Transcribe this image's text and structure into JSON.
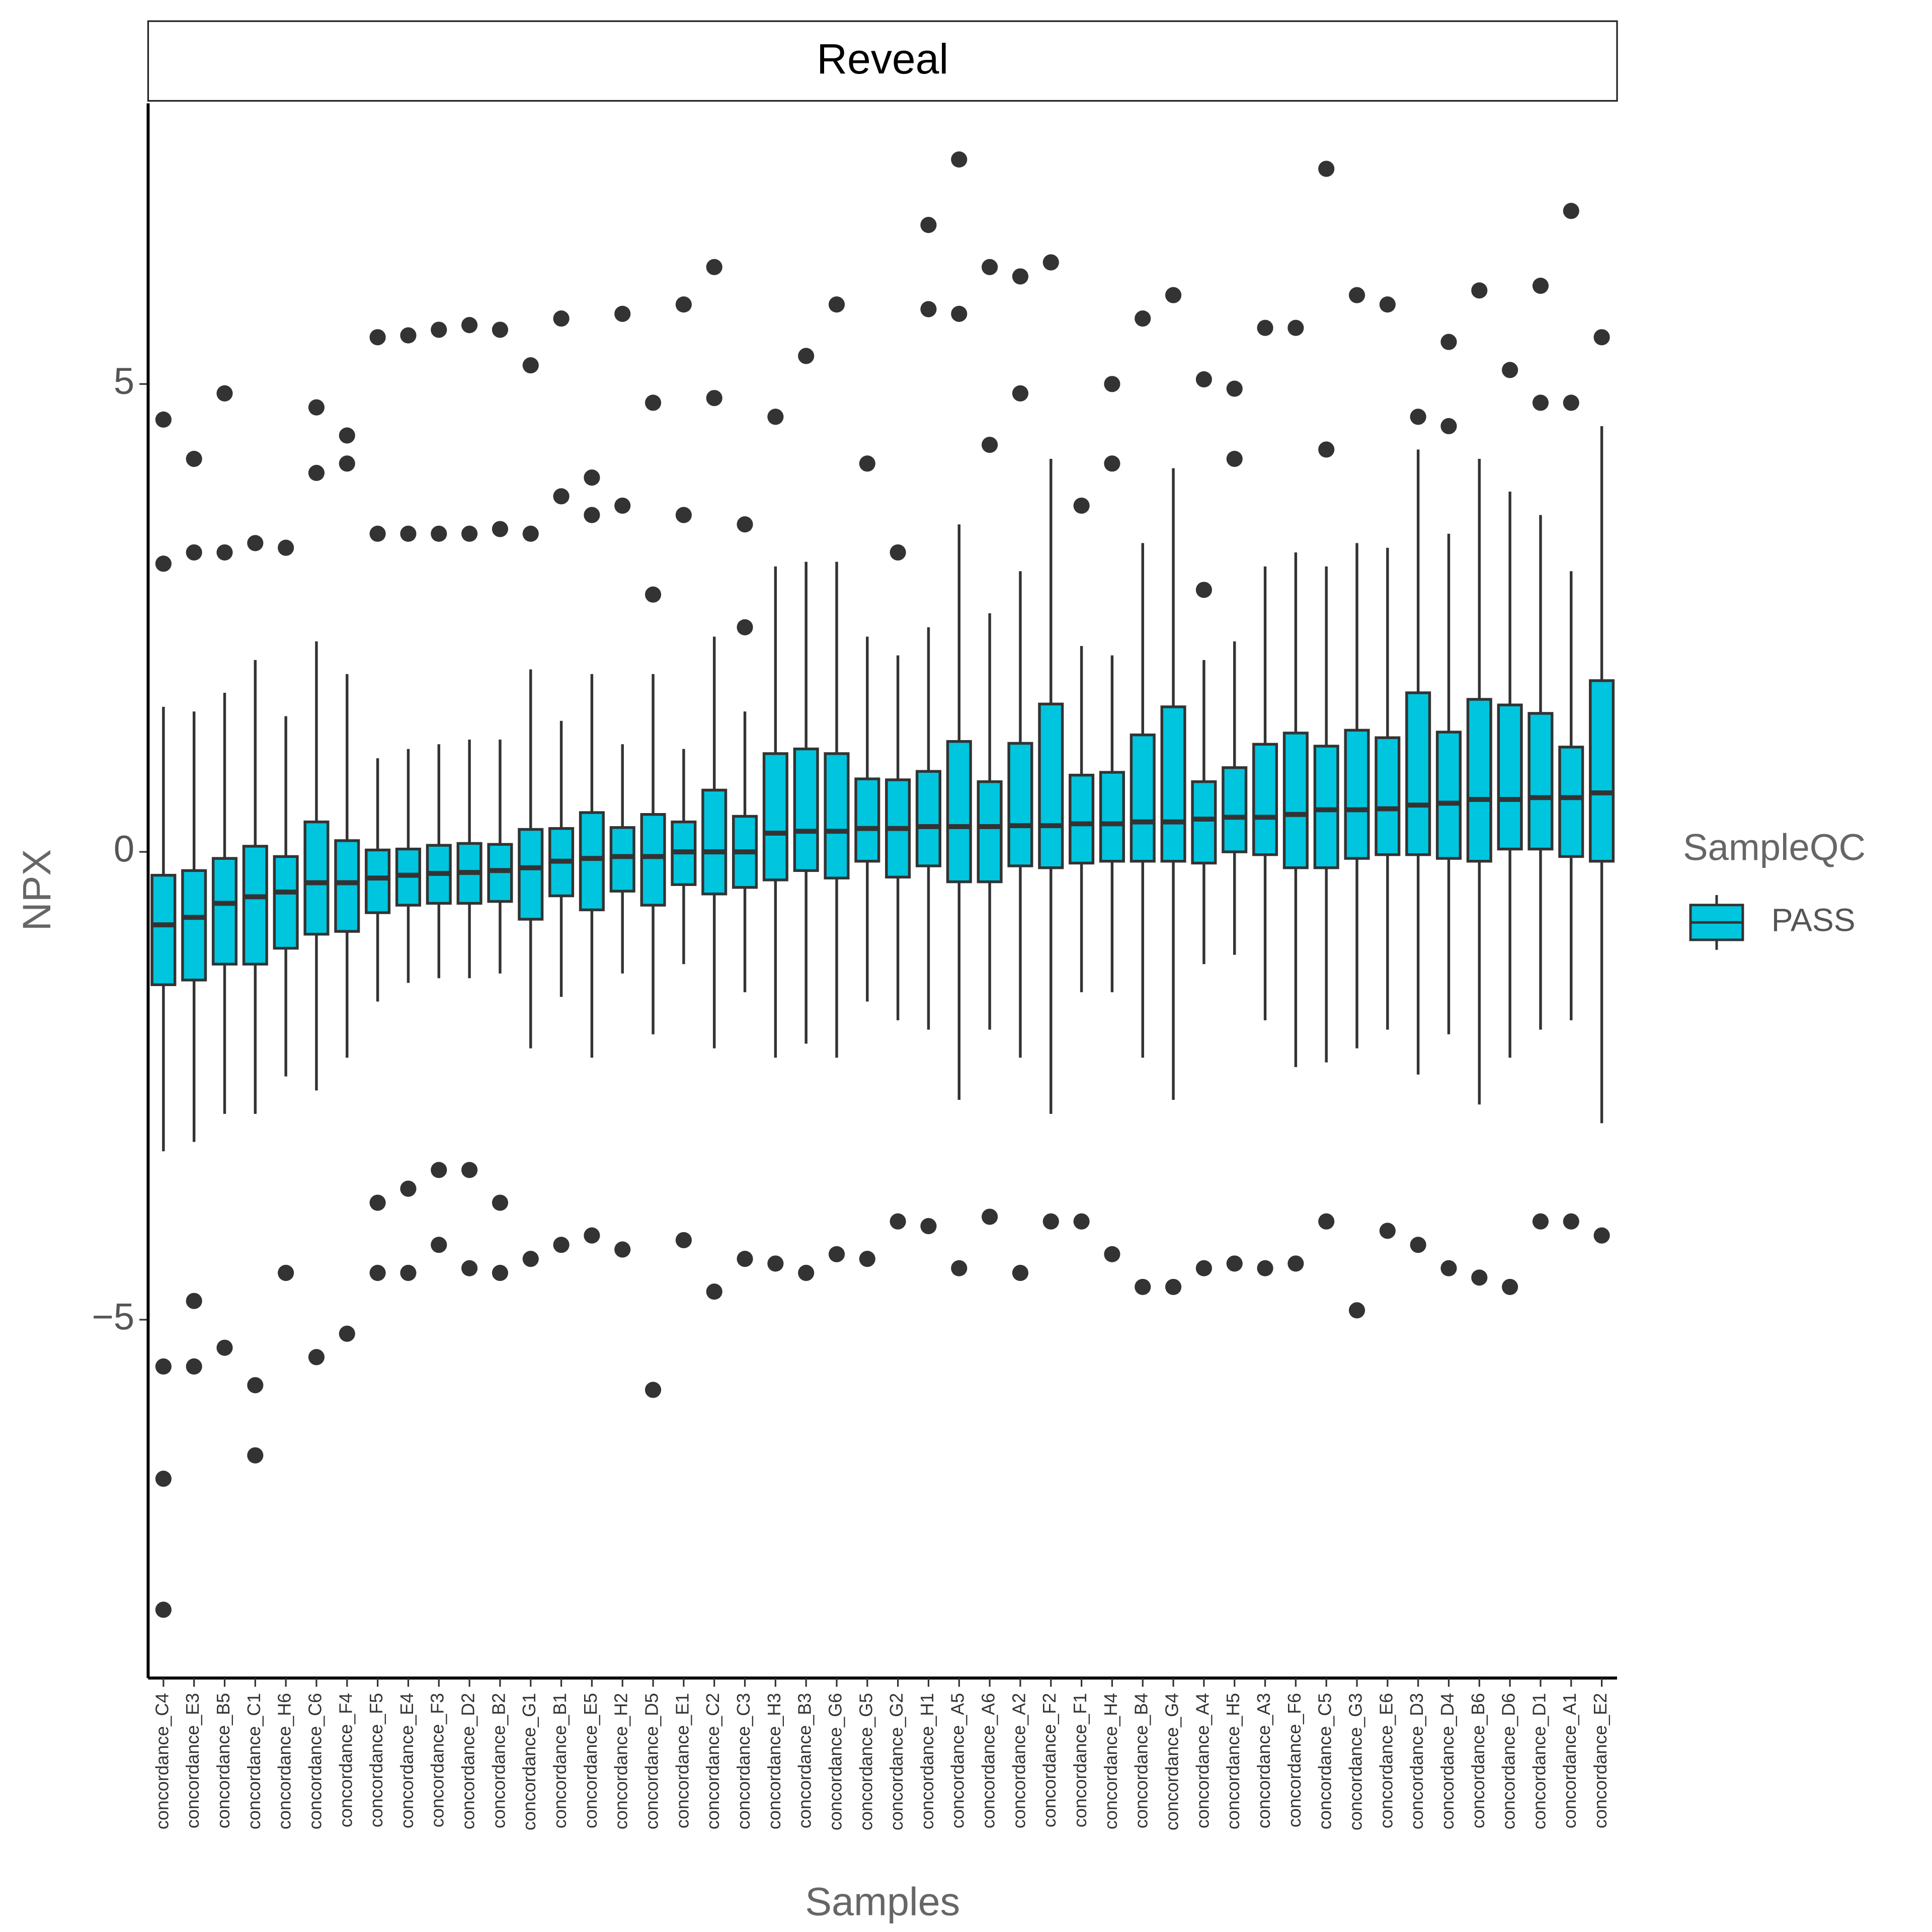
{
  "chart_data": {
    "type": "boxplot",
    "facet": "Reveal",
    "x_label": "Samples",
    "y_label": "NPX",
    "legend_title": "SampleQC",
    "legend_position": "right",
    "ylim": [
      -8.83,
      8.0
    ],
    "yticks": [
      {
        "value": -5,
        "label": "−5"
      },
      0,
      5
    ],
    "categories": [
      "concordance_C4",
      "concordance_E3",
      "concordance_B5",
      "concordance_C1",
      "concordance_H6",
      "concordance_C6",
      "concordance_F4",
      "concordance_F5",
      "concordance_E4",
      "concordance_F3",
      "concordance_D2",
      "concordance_B2",
      "concordance_G1",
      "concordance_B1",
      "concordance_E5",
      "concordance_H2",
      "concordance_D5",
      "concordance_E1",
      "concordance_C2",
      "concordance_C3",
      "concordance_H3",
      "concordance_B3",
      "concordance_G6",
      "concordance_G5",
      "concordance_G2",
      "concordance_H1",
      "concordance_A5",
      "concordance_A6",
      "concordance_A2",
      "concordance_F2",
      "concordance_F1",
      "concordance_H4",
      "concordance_B4",
      "concordance_G4",
      "concordance_A4",
      "concordance_H5",
      "concordance_A3",
      "concordance_F6",
      "concordance_C5",
      "concordance_G3",
      "concordance_E6",
      "concordance_D3",
      "concordance_D4",
      "concordance_B6",
      "concordance_D6",
      "concordance_D1",
      "concordance_A1",
      "concordance_E2"
    ],
    "series": [
      {
        "name": "PASS",
        "color": "#00c5de",
        "whislo": [
          -3.2,
          -3.1,
          -2.8,
          -2.8,
          -2.4,
          -2.55,
          -2.2,
          -1.6,
          -1.4,
          -1.35,
          -1.35,
          -1.3,
          -2.1,
          -1.55,
          -2.2,
          -1.3,
          -1.95,
          -1.2,
          -2.1,
          -1.5,
          -2.2,
          -2.05,
          -2.2,
          -1.6,
          -1.8,
          -1.9,
          -2.65,
          -1.9,
          -2.2,
          -2.8,
          -1.5,
          -1.5,
          -2.2,
          -2.65,
          -1.2,
          -1.1,
          -1.8,
          -2.3,
          -2.25,
          -2.1,
          -1.9,
          -2.38,
          -1.95,
          -2.7,
          -2.2,
          -1.9,
          -1.8,
          -2.9
        ],
        "q1": [
          -1.42,
          -1.37,
          -1.2,
          -1.2,
          -1.03,
          -0.88,
          -0.85,
          -0.65,
          -0.57,
          -0.55,
          -0.55,
          -0.53,
          -0.72,
          -0.47,
          -0.62,
          -0.42,
          -0.57,
          -0.35,
          -0.45,
          -0.38,
          -0.3,
          -0.2,
          -0.28,
          -0.1,
          -0.27,
          -0.15,
          -0.32,
          -0.32,
          -0.15,
          -0.17,
          -0.12,
          -0.1,
          -0.1,
          -0.1,
          -0.12,
          0.0,
          -0.03,
          -0.17,
          -0.17,
          -0.07,
          -0.03,
          -0.03,
          -0.07,
          -0.1,
          0.03,
          0.03,
          -0.05,
          -0.1
        ],
        "median": [
          -0.78,
          -0.7,
          -0.55,
          -0.48,
          -0.43,
          -0.33,
          -0.33,
          -0.28,
          -0.25,
          -0.23,
          -0.22,
          -0.2,
          -0.17,
          -0.1,
          -0.07,
          -0.05,
          -0.05,
          0.0,
          0.0,
          0.0,
          0.2,
          0.22,
          0.22,
          0.25,
          0.25,
          0.27,
          0.27,
          0.27,
          0.28,
          0.28,
          0.3,
          0.3,
          0.32,
          0.32,
          0.35,
          0.37,
          0.37,
          0.4,
          0.45,
          0.45,
          0.46,
          0.5,
          0.52,
          0.56,
          0.56,
          0.58,
          0.58,
          0.63
        ],
        "q3": [
          -0.25,
          -0.2,
          -0.07,
          0.06,
          -0.05,
          0.32,
          0.12,
          0.02,
          0.03,
          0.07,
          0.09,
          0.08,
          0.24,
          0.25,
          0.42,
          0.26,
          0.4,
          0.32,
          0.66,
          0.38,
          1.05,
          1.1,
          1.05,
          0.78,
          0.77,
          0.86,
          1.18,
          0.75,
          1.16,
          1.58,
          0.82,
          0.85,
          1.25,
          1.55,
          0.75,
          0.9,
          1.15,
          1.27,
          1.13,
          1.3,
          1.22,
          1.7,
          1.28,
          1.63,
          1.57,
          1.48,
          1.12,
          1.83
        ],
        "whishi": [
          1.55,
          1.5,
          1.7,
          2.05,
          1.45,
          2.25,
          1.9,
          1.0,
          1.1,
          1.15,
          1.2,
          1.2,
          1.95,
          1.4,
          1.9,
          1.15,
          1.9,
          1.1,
          2.3,
          1.5,
          3.05,
          3.1,
          3.1,
          2.3,
          2.1,
          2.4,
          3.5,
          2.55,
          3.0,
          4.2,
          2.2,
          2.1,
          3.3,
          4.1,
          2.05,
          2.25,
          3.05,
          3.2,
          3.05,
          3.3,
          3.25,
          4.3,
          3.4,
          4.2,
          3.85,
          3.6,
          3.0,
          4.55
        ],
        "outliers": [
          [
            4.62,
            3.08,
            -5.5,
            -6.7,
            -8.1
          ],
          [
            4.2,
            3.2,
            -4.8,
            -5.5
          ],
          [
            4.9,
            3.2,
            -5.3
          ],
          [
            3.3,
            -5.7,
            -6.45
          ],
          [
            3.25,
            -4.5
          ],
          [
            4.75,
            4.05,
            -5.4
          ],
          [
            4.45,
            4.15,
            -5.15
          ],
          [
            5.5,
            3.4,
            -3.75,
            -4.5
          ],
          [
            5.52,
            3.4,
            -3.6,
            -4.5
          ],
          [
            5.58,
            3.4,
            -3.4,
            -4.2
          ],
          [
            5.63,
            3.4,
            -3.4,
            -4.45
          ],
          [
            5.58,
            3.45,
            -3.75,
            -4.5
          ],
          [
            5.2,
            3.4,
            -4.35
          ],
          [
            5.7,
            3.8,
            -4.2
          ],
          [
            4.0,
            3.6,
            -4.1
          ],
          [
            5.75,
            3.7,
            -4.25
          ],
          [
            4.8,
            2.75,
            -5.75
          ],
          [
            5.85,
            3.6,
            -4.15
          ],
          [
            6.25,
            4.85,
            -4.7
          ],
          [
            3.5,
            2.4,
            -4.35
          ],
          [
            4.65,
            -4.4
          ],
          [
            5.3,
            -4.5
          ],
          [
            5.85,
            -4.3
          ],
          [
            4.15,
            -4.35
          ],
          [
            3.2,
            -3.95
          ],
          [
            6.7,
            5.8,
            -4.0
          ],
          [
            7.4,
            5.75,
            -4.45
          ],
          [
            6.25,
            4.35,
            -3.9
          ],
          [
            6.15,
            4.9,
            -4.5
          ],
          [
            6.3,
            -3.95
          ],
          [
            3.7,
            -3.95
          ],
          [
            5.0,
            4.15,
            -4.3
          ],
          [
            5.7,
            -4.65
          ],
          [
            5.95,
            -4.65
          ],
          [
            5.05,
            2.8,
            -4.45
          ],
          [
            4.95,
            4.2,
            -4.4
          ],
          [
            5.6,
            -4.45
          ],
          [
            5.6,
            -4.4
          ],
          [
            7.3,
            4.3,
            -3.95
          ],
          [
            5.95,
            -4.9
          ],
          [
            5.85,
            -4.05
          ],
          [
            4.65,
            -4.2
          ],
          [
            5.45,
            4.55,
            -4.45
          ],
          [
            6.0,
            -4.55
          ],
          [
            5.15,
            -4.65
          ],
          [
            6.05,
            4.8,
            -3.95
          ],
          [
            6.85,
            4.8,
            -3.95
          ],
          [
            5.5,
            -4.1
          ]
        ]
      }
    ]
  }
}
